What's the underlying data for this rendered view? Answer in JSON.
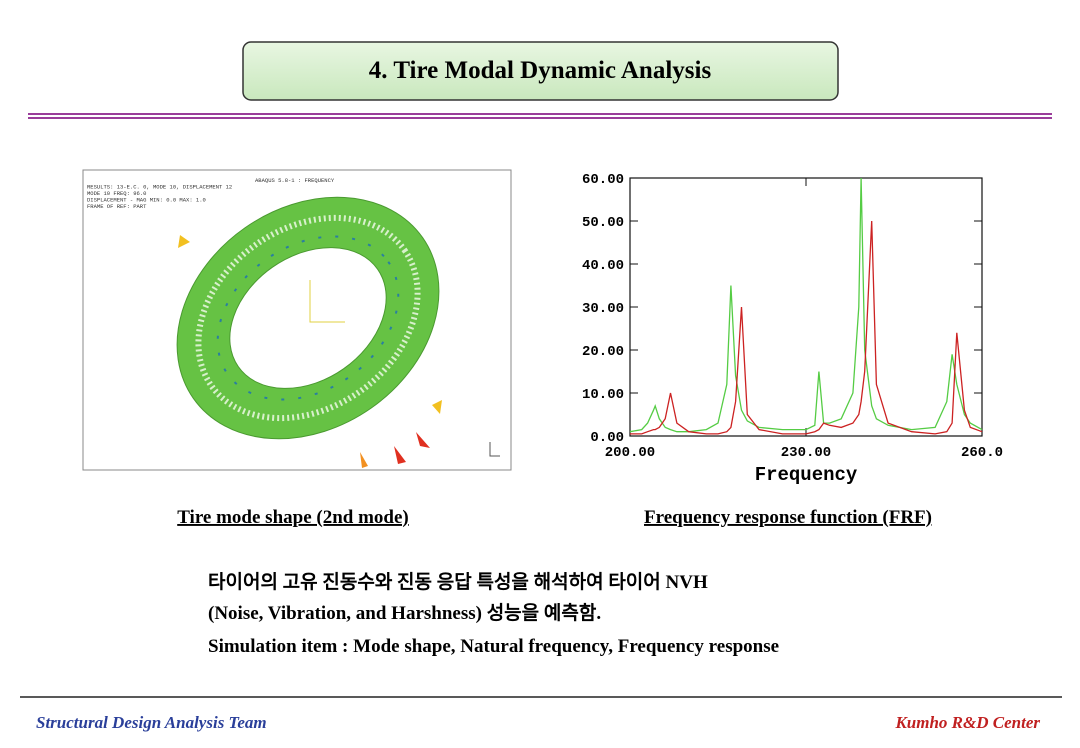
{
  "header": {
    "title": "4. Tire Modal Dynamic Analysis"
  },
  "figure_left": {
    "caption": "Tire mode shape (2nd mode)",
    "image_text": [
      "ABAQUS 5.8-1 : FREQUENCY",
      "RESULTS: 13-E.C. 0, MODE 10, DISPLACEMENT 12",
      "MODE 10 FREQ: 96.0",
      "DISPLACEMENT - MAG MIN: 0.0 MAX: 1.0",
      "FRAME OF REF: PART"
    ]
  },
  "figure_right": {
    "caption": "Frequency response function (FRF)"
  },
  "chart_data": {
    "type": "line",
    "x_label": "Frequency",
    "x": [
      200,
      202,
      203,
      204,
      204.3,
      205,
      206,
      206.9,
      208,
      210,
      213,
      215,
      216.5,
      217.2,
      218,
      219,
      220,
      222,
      226,
      230,
      231.5,
      232.2,
      233,
      234,
      236,
      238,
      239,
      239.4,
      240,
      241.2,
      242,
      244,
      248,
      252,
      254,
      254.9,
      255.7,
      257,
      258,
      260
    ],
    "series": [
      {
        "color": "#55cc44",
        "values": [
          1,
          1.5,
          3,
          6,
          7,
          4,
          2,
          1.5,
          1,
          1,
          1.5,
          3,
          12,
          35,
          14,
          6,
          3.5,
          2,
          1.5,
          1.5,
          2.5,
          15,
          3,
          3,
          4,
          10,
          30,
          60,
          20,
          7,
          4,
          2.5,
          1.5,
          2,
          8,
          19,
          12,
          5,
          3,
          1.5
        ]
      },
      {
        "color": "#cc2222",
        "values": [
          0.5,
          0.5,
          1,
          1.5,
          1.5,
          2,
          4,
          10,
          3,
          1,
          0.5,
          0.5,
          1,
          2,
          8,
          30,
          5,
          1.5,
          0.5,
          0.5,
          1,
          1.5,
          3,
          2.5,
          2,
          3,
          5,
          8,
          15,
          50,
          12,
          3,
          1,
          0.5,
          1,
          3,
          24,
          6,
          2,
          1
        ]
      }
    ],
    "xlim": [
      200,
      260
    ],
    "ylim": [
      0,
      60
    ],
    "xticks": [
      {
        "value": 200,
        "label": "200.00"
      },
      {
        "value": 230,
        "label": "230.00"
      },
      {
        "value": 260,
        "label": "260.0"
      }
    ],
    "yticks": [
      {
        "value": 0,
        "label": "0.00"
      },
      {
        "value": 10,
        "label": "10.00"
      },
      {
        "value": 20,
        "label": "20.00"
      },
      {
        "value": 30,
        "label": "30.00"
      },
      {
        "value": 40,
        "label": "40.00"
      },
      {
        "value": 50,
        "label": "50.00"
      },
      {
        "value": 60,
        "label": "60.00"
      }
    ]
  },
  "body": {
    "lines": [
      "타이어의 고유 진동수와 진동 응답 특성을 해석하여 타이어 NVH",
      "(Noise, Vibration, and Harshness) 성능을 예측함.",
      "Simulation item : Mode shape, Natural frequency, Frequency response"
    ]
  },
  "footer": {
    "left": "Structural Design Analysis Team",
    "right": "Kumho R&D Center"
  }
}
